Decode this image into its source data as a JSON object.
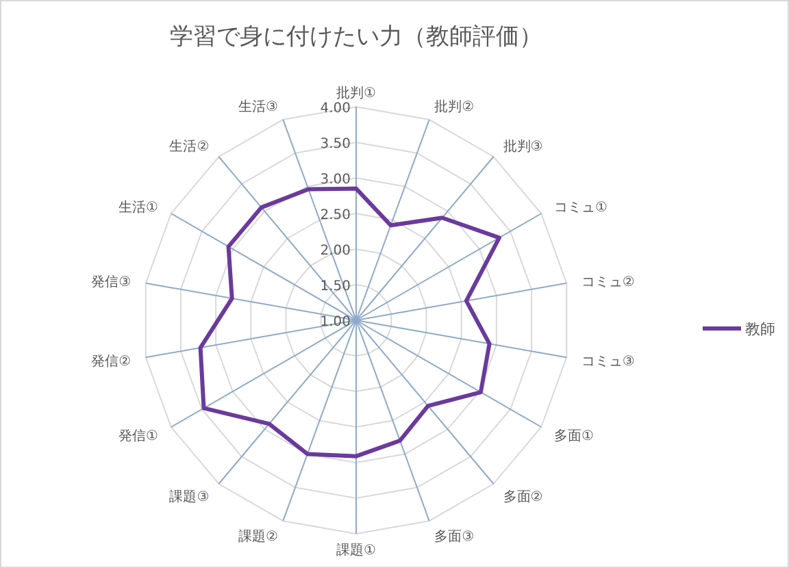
{
  "chart_data": {
    "type": "radar",
    "title": "学習で身に付けたい力（教師評価）",
    "categories": [
      "批判①",
      "批判②",
      "批判③",
      "コミュ①",
      "コミュ②",
      "コミュ③",
      "多面①",
      "多面②",
      "多面③",
      "課題①",
      "課題②",
      "課題③",
      "発信①",
      "発信②",
      "発信③",
      "生活①",
      "生活②",
      "生活③"
    ],
    "series": [
      {
        "name": "教師",
        "color": "#6a3a9c",
        "values": [
          2.85,
          2.42,
          2.88,
          3.32,
          2.57,
          2.9,
          3.02,
          2.57,
          2.8,
          2.91,
          3.0,
          2.9,
          3.47,
          3.22,
          2.77,
          3.07,
          3.07,
          2.96
        ]
      }
    ],
    "ylim": [
      1,
      4
    ],
    "yticks": [
      {
        "value": 1,
        "label": "1.00"
      },
      {
        "value": 1.5,
        "label": "1.50"
      },
      {
        "value": 2,
        "label": "2.00"
      },
      {
        "value": 2.5,
        "label": "2.50"
      },
      {
        "value": 3,
        "label": "3.00"
      },
      {
        "value": 3.5,
        "label": "3.50"
      },
      {
        "value": 4,
        "label": "4.00"
      }
    ],
    "grid": true,
    "legend": "right",
    "marker": "none",
    "line_style": "solid"
  }
}
